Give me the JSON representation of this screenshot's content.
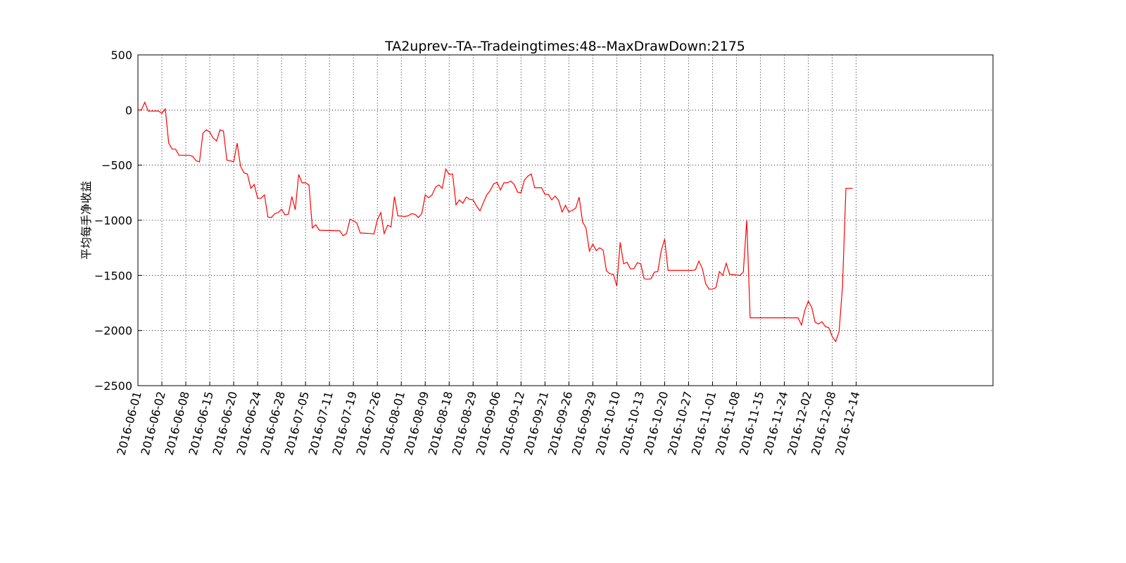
{
  "chart_data": {
    "type": "line",
    "title": "TA2uprev--TA--Tradeingtimes:48--MaxDrawDown:2175",
    "y_label": "平均每手净收益",
    "grid": true,
    "xlim": [
      0,
      250
    ],
    "ylim": [
      -2500,
      500
    ],
    "yticks": [
      {
        "value": -2500,
        "label": "−2500"
      },
      {
        "value": -2000,
        "label": "−2000"
      },
      {
        "value": -1500,
        "label": "−1500"
      },
      {
        "value": -1000,
        "label": "−1000"
      },
      {
        "value": -500,
        "label": "−500"
      },
      0,
      500
    ],
    "xticks": [
      {
        "value": 0,
        "label": "2016-06-01"
      },
      {
        "value": 7,
        "label": "2016-06-02"
      },
      {
        "value": 14,
        "label": "2016-06-08"
      },
      {
        "value": 21,
        "label": "2016-06-15"
      },
      {
        "value": 28,
        "label": "2016-06-20"
      },
      {
        "value": 35,
        "label": "2016-06-24"
      },
      {
        "value": 42,
        "label": "2016-06-28"
      },
      {
        "value": 49,
        "label": "2016-07-05"
      },
      {
        "value": 56,
        "label": "2016-07-11"
      },
      {
        "value": 63,
        "label": "2016-07-19"
      },
      {
        "value": 70,
        "label": "2016-07-26"
      },
      {
        "value": 77,
        "label": "2016-08-01"
      },
      {
        "value": 84,
        "label": "2016-08-09"
      },
      {
        "value": 91,
        "label": "2016-08-18"
      },
      {
        "value": 98,
        "label": "2016-08-29"
      },
      {
        "value": 105,
        "label": "2016-09-06"
      },
      {
        "value": 112,
        "label": "2016-09-12"
      },
      {
        "value": 119,
        "label": "2016-09-21"
      },
      {
        "value": 126,
        "label": "2016-09-26"
      },
      {
        "value": 133,
        "label": "2016-09-29"
      },
      {
        "value": 140,
        "label": "2016-10-10"
      },
      {
        "value": 147,
        "label": "2016-10-13"
      },
      {
        "value": 154,
        "label": "2016-10-20"
      },
      {
        "value": 161,
        "label": "2016-10-27"
      },
      {
        "value": 168,
        "label": "2016-11-01"
      },
      {
        "value": 175,
        "label": "2016-11-08"
      },
      {
        "value": 182,
        "label": "2016-11-15"
      },
      {
        "value": 189,
        "label": "2016-11-24"
      },
      {
        "value": 196,
        "label": "2016-12-02"
      },
      {
        "value": 203,
        "label": "2016-12-08"
      },
      {
        "value": 210,
        "label": "2016-12-14"
      }
    ],
    "series": [
      {
        "color": "#ff0000",
        "x": [
          0,
          1,
          2,
          3,
          4,
          6,
          7,
          8,
          9,
          10,
          11,
          12,
          15,
          16,
          17,
          18,
          19,
          20,
          21,
          22,
          23,
          24,
          25,
          26,
          27,
          28,
          29,
          30,
          31,
          32,
          33,
          34,
          35,
          36,
          37,
          38,
          39,
          40,
          41,
          42,
          43,
          44,
          45,
          46,
          47,
          48,
          49,
          50,
          51,
          52,
          53,
          59,
          60,
          61,
          62,
          63,
          64,
          65,
          68,
          69,
          70,
          71,
          72,
          73,
          74,
          75,
          76,
          78,
          79,
          80,
          81,
          82,
          83,
          84,
          85,
          86,
          87,
          88,
          89,
          90,
          91,
          92,
          93,
          94,
          95,
          96,
          97,
          98,
          99,
          100,
          101,
          102,
          103,
          104,
          105,
          106,
          107,
          108,
          109,
          110,
          111,
          112,
          113,
          114,
          115,
          116,
          118,
          119,
          120,
          121,
          122,
          123,
          124,
          125,
          126,
          127,
          128,
          129,
          130,
          131,
          132,
          133,
          134,
          135,
          136,
          137,
          138,
          139,
          140,
          141,
          142,
          143,
          144,
          145,
          146,
          147,
          148,
          149,
          150,
          151,
          152,
          153,
          154,
          155,
          162,
          163,
          164,
          165,
          166,
          167,
          168,
          169,
          170,
          171,
          172,
          173,
          176,
          177,
          178,
          179,
          193,
          194,
          195,
          196,
          197,
          198,
          199,
          200,
          201,
          202,
          203,
          204,
          205,
          206,
          207,
          209
        ],
        "values": [
          0,
          0,
          70,
          -10,
          -10,
          -10,
          -30,
          10,
          -300,
          -355,
          -355,
          -410,
          -410,
          -420,
          -460,
          -470,
          -210,
          -180,
          -200,
          -255,
          -280,
          -180,
          -190,
          -455,
          -460,
          -470,
          -300,
          -510,
          -570,
          -580,
          -710,
          -675,
          -800,
          -800,
          -770,
          -970,
          -975,
          -940,
          -930,
          -900,
          -950,
          -945,
          -785,
          -905,
          -585,
          -660,
          -660,
          -680,
          -1070,
          -1040,
          -1090,
          -1095,
          -1140,
          -1120,
          -990,
          -1005,
          -1025,
          -1115,
          -1120,
          -1125,
          -995,
          -930,
          -1120,
          -1045,
          -1060,
          -785,
          -960,
          -965,
          -960,
          -940,
          -945,
          -975,
          -940,
          -770,
          -795,
          -770,
          -700,
          -680,
          -710,
          -535,
          -585,
          -580,
          -860,
          -815,
          -845,
          -790,
          -810,
          -815,
          -870,
          -915,
          -840,
          -770,
          -730,
          -670,
          -655,
          -725,
          -660,
          -660,
          -645,
          -675,
          -745,
          -750,
          -635,
          -600,
          -580,
          -705,
          -705,
          -765,
          -765,
          -815,
          -780,
          -820,
          -925,
          -865,
          -925,
          -910,
          -890,
          -790,
          -1015,
          -1070,
          -1280,
          -1215,
          -1275,
          -1250,
          -1270,
          -1460,
          -1485,
          -1490,
          -1595,
          -1200,
          -1395,
          -1380,
          -1440,
          -1440,
          -1385,
          -1395,
          -1530,
          -1535,
          -1530,
          -1470,
          -1465,
          -1275,
          -1170,
          -1455,
          -1455,
          -1450,
          -1370,
          -1435,
          -1575,
          -1625,
          -1625,
          -1610,
          -1465,
          -1500,
          -1390,
          -1490,
          -1500,
          -1470,
          -1000,
          -1885,
          -1885,
          -1950,
          -1815,
          -1735,
          -1790,
          -1925,
          -1940,
          -1920,
          -1965,
          -1975,
          -2055,
          -2100,
          -2010,
          -1600,
          -710,
          -710
        ]
      }
    ]
  }
}
